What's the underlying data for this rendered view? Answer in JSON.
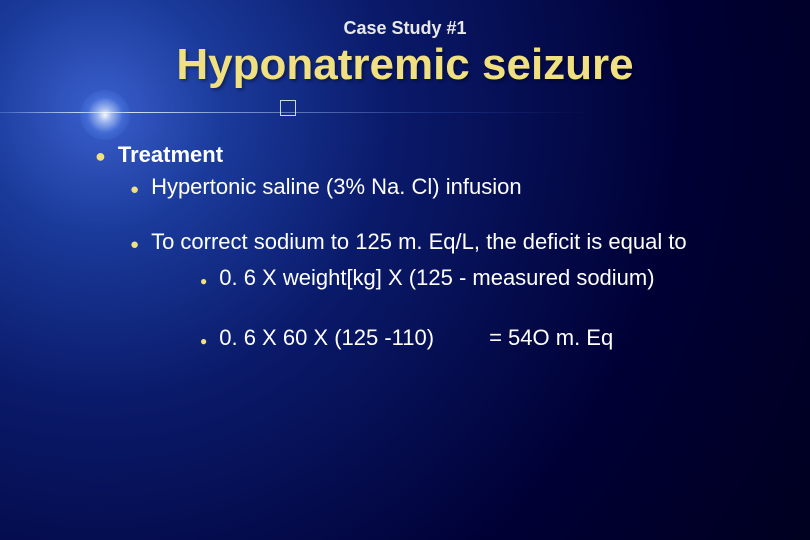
{
  "colors": {
    "accent": "#f0e080",
    "text": "#ffffff",
    "bg_center": "#3a5fcc",
    "bg_outer": "#000020"
  },
  "typography": {
    "family": "Comic Sans MS",
    "pretitle_size": 18,
    "title_size": 44,
    "body_size": 22
  },
  "pretitle": "Case Study #1",
  "title": "Hyponatremic seizure",
  "bullets": [
    {
      "level": 1,
      "text": "Treatment",
      "bold": true
    },
    {
      "level": 2,
      "text": "Hypertonic saline (3% Na. Cl) infusion"
    },
    {
      "level": "spacer"
    },
    {
      "level": 2,
      "text": "To correct sodium to 125 m. Eq/L, the deficit is equal to"
    },
    {
      "level": 3,
      "text": "0. 6 X weight[kg] X (125 - measured sodium)"
    },
    {
      "level": "spacer"
    },
    {
      "level": 3,
      "text": "0. 6 X 60 X (125 -110)",
      "tail": "= 54O m. Eq"
    }
  ]
}
